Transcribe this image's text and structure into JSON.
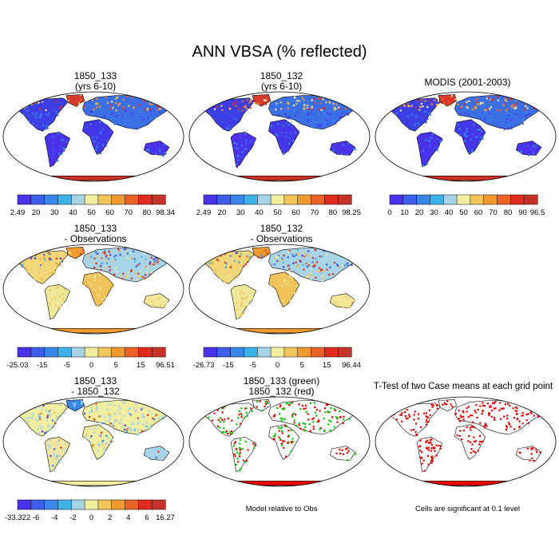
{
  "figure": {
    "title": "ANN VBSA (% reflected)",
    "colors": {
      "ocean": "#ffffff",
      "land_low": "#4a32ea",
      "land_high": "#d33324",
      "sig_red": "#ee0000",
      "green": "#00cc00"
    }
  },
  "panels": [
    {
      "id": "p11",
      "title_line1": "1850_133",
      "title_line2": "(yrs 6-10)",
      "kind": "abs",
      "colorbar": "cb1"
    },
    {
      "id": "p12",
      "title_line1": "1850_132",
      "title_line2": "(yrs 6-10)",
      "kind": "abs",
      "colorbar": "cb2"
    },
    {
      "id": "p13",
      "title_line1": "MODIS (2001-2003)",
      "title_line2": "",
      "kind": "abs",
      "colorbar": "cb3"
    },
    {
      "id": "p21",
      "title_line1": "1850_133",
      "title_line2": "- Observations",
      "kind": "diff",
      "colorbar": "cb4"
    },
    {
      "id": "p22",
      "title_line1": "1850_132",
      "title_line2": "- Observations",
      "kind": "diff",
      "colorbar": "cb5"
    },
    {
      "id": "p31",
      "title_line1": "1850_133",
      "title_line2": "- 1850_132",
      "kind": "cdiff",
      "colorbar": "cb6"
    },
    {
      "id": "p32",
      "title_line1": "1850_133 (green)",
      "title_line2": "1850_132 (red)",
      "kind": "mix",
      "footnote": "Model relative to Obs"
    },
    {
      "id": "p33",
      "title_line1": "T-Test of two Case means at each grid point",
      "title_line2": "",
      "kind": "ttest",
      "footnote": "Cells are significant at 0.1 level"
    }
  ],
  "chart_data": {
    "type": "heatmap",
    "colorbars": [
      {
        "id": "cb1",
        "palette": "abs",
        "ticks": [
          "2.49",
          "20",
          "30",
          "40",
          "50",
          "60",
          "70",
          "80",
          "98.34"
        ]
      },
      {
        "id": "cb2",
        "palette": "abs",
        "ticks": [
          "2.49",
          "20",
          "30",
          "40",
          "50",
          "60",
          "70",
          "80",
          "98.25"
        ]
      },
      {
        "id": "cb3",
        "palette": "abs11",
        "ticks": [
          "0",
          "10",
          "20",
          "30",
          "40",
          "50",
          "60",
          "70",
          "80",
          "90",
          "96.5"
        ]
      },
      {
        "id": "cb4",
        "palette": "diff",
        "ticks": [
          "-25.03",
          "-15",
          "-5",
          "0",
          "5",
          "15",
          "96.51"
        ]
      },
      {
        "id": "cb5",
        "palette": "diff",
        "ticks": [
          "-26.73",
          "-15",
          "-5",
          "0",
          "5",
          "15",
          "96.44"
        ]
      },
      {
        "id": "cb6",
        "palette": "diff",
        "ticks": [
          "-33.322",
          "-6",
          "-4",
          "-2",
          "0",
          "2",
          "4",
          "6",
          "16.27"
        ]
      }
    ],
    "palettes": {
      "abs": [
        "#4a32ea",
        "#3d5ee8",
        "#3a86e8",
        "#3eb2e6",
        "#a6d3e8",
        "#f2eea0",
        "#f2c45a",
        "#ef9a2e",
        "#ea6226",
        "#e02c1e",
        "#c73328"
      ],
      "abs11": [
        "#4a32ea",
        "#3d5ee8",
        "#3a86e8",
        "#3eb2e6",
        "#a6d3e8",
        "#f2eea0",
        "#f2c45a",
        "#ef9a2e",
        "#ea6226",
        "#e02c1e",
        "#c73328"
      ],
      "diff": [
        "#4a32ea",
        "#3d5ee8",
        "#3a86e8",
        "#3eb2e6",
        "#a6d3e8",
        "#f2eea0",
        "#f2c45a",
        "#ef9a2e",
        "#ea6226",
        "#e02c1e",
        "#c73328"
      ]
    }
  }
}
